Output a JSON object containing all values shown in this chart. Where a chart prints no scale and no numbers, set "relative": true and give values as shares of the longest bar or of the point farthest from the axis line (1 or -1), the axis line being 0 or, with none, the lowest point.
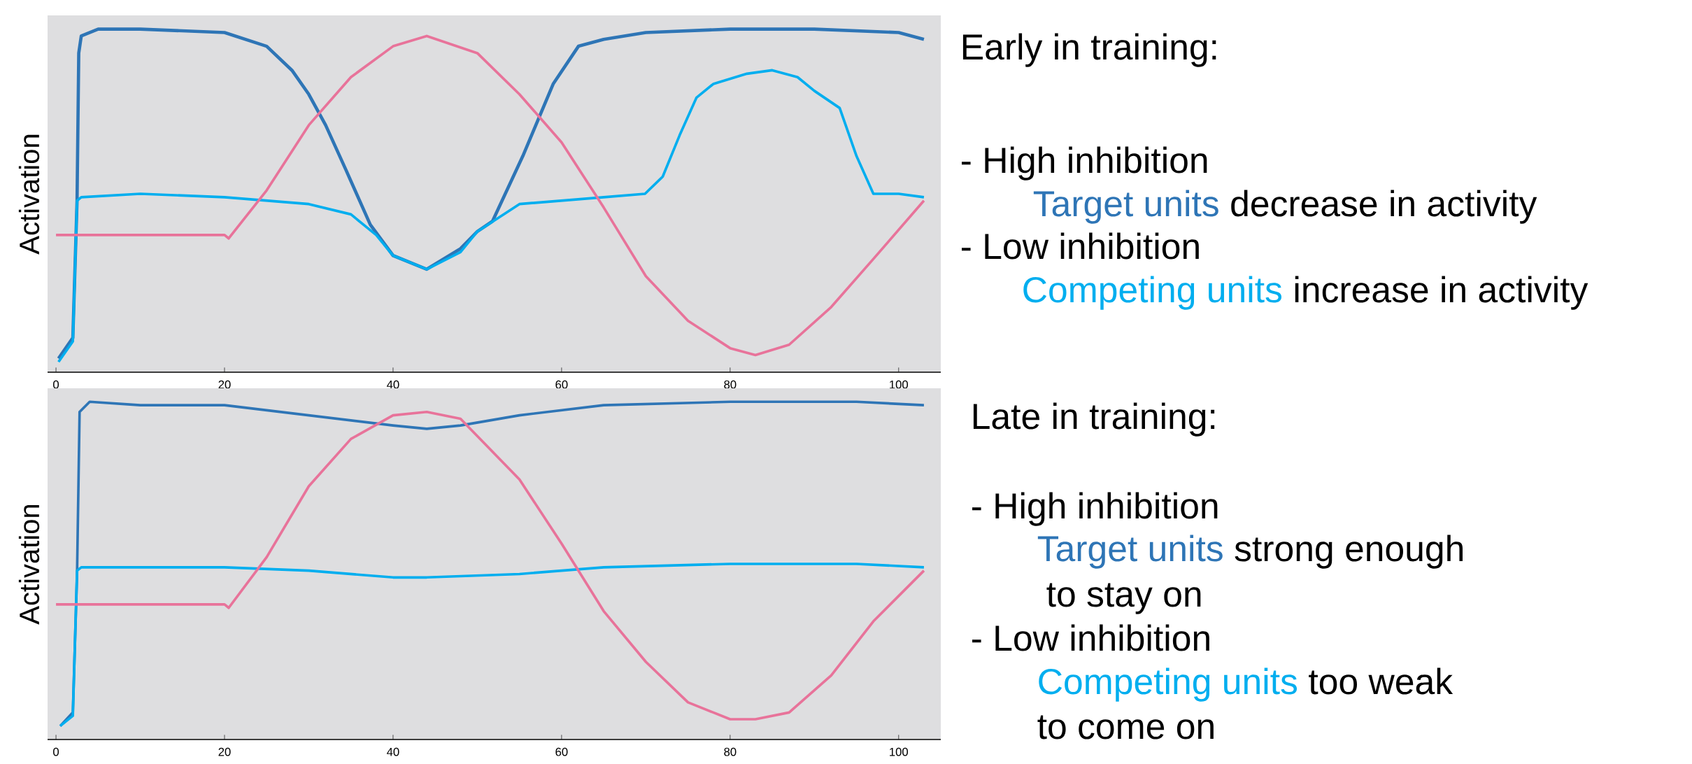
{
  "chart_data": [
    {
      "type": "line",
      "relative": true,
      "ylabel": "Activation",
      "xlim": [
        -1,
        105
      ],
      "xticks": [
        0,
        20,
        40,
        60,
        80,
        100
      ],
      "series": [
        {
          "color": "#2e75b6",
          "x": [
            0.3,
            2,
            2.5,
            2.7,
            3,
            5,
            10,
            20,
            25,
            28,
            30,
            32,
            34.4,
            37.3,
            40,
            44,
            48,
            50,
            51.8,
            55.4,
            59,
            62,
            65,
            70,
            80,
            90,
            100,
            103
          ],
          "values": [
            0.04,
            0.1,
            0.5,
            0.93,
            0.98,
            1.0,
            1.0,
            0.99,
            0.95,
            0.88,
            0.81,
            0.72,
            0.59,
            0.43,
            0.34,
            0.3,
            0.36,
            0.41,
            0.44,
            0.63,
            0.84,
            0.95,
            0.97,
            0.99,
            1.0,
            1.0,
            0.99,
            0.97
          ]
        },
        {
          "color": "#00aeef",
          "x": [
            0.3,
            2,
            2.5,
            3,
            10,
            20,
            25,
            30,
            35,
            38,
            40,
            44,
            48,
            50,
            55,
            60,
            65,
            69.9,
            72,
            74,
            76,
            78,
            82,
            85,
            88,
            90,
            93,
            95,
            97,
            100,
            103
          ],
          "values": [
            0.03,
            0.09,
            0.5,
            0.51,
            0.52,
            0.51,
            0.5,
            0.49,
            0.46,
            0.4,
            0.34,
            0.3,
            0.35,
            0.41,
            0.49,
            0.5,
            0.51,
            0.52,
            0.57,
            0.69,
            0.8,
            0.84,
            0.87,
            0.88,
            0.86,
            0.82,
            0.77,
            0.63,
            0.52,
            0.52,
            0.51
          ]
        },
        {
          "color": "#e8739a",
          "x": [
            0,
            20,
            20.5,
            25,
            30,
            35,
            40,
            44,
            50,
            55,
            60,
            65,
            70,
            75,
            80,
            83,
            87,
            92,
            97,
            103
          ],
          "values": [
            0.4,
            0.4,
            0.39,
            0.53,
            0.72,
            0.86,
            0.95,
            0.98,
            0.93,
            0.81,
            0.67,
            0.48,
            0.28,
            0.15,
            0.07,
            0.05,
            0.08,
            0.19,
            0.33,
            0.5
          ]
        }
      ],
      "annotations": [
        "Early in training:",
        "- High inhibition",
        "Target units",
        "decrease in activity",
        "- Low inhibition",
        "Competing units",
        "increase in activity"
      ]
    },
    {
      "type": "line",
      "relative": true,
      "ylabel": "Activation",
      "xlim": [
        -1,
        105
      ],
      "xticks": [
        0,
        20,
        40,
        60,
        80,
        100
      ],
      "series": [
        {
          "color": "#2e75b6",
          "x": [
            0.5,
            2,
            2.5,
            2.8,
            4,
            10,
            20,
            30,
            40,
            44,
            48,
            55,
            65,
            80,
            95,
            103
          ],
          "values": [
            0.04,
            0.08,
            0.49,
            0.97,
            1.0,
            0.99,
            0.99,
            0.96,
            0.93,
            0.92,
            0.93,
            0.96,
            0.99,
            1.0,
            1.0,
            0.99
          ]
        },
        {
          "color": "#00aeef",
          "x": [
            0.5,
            2,
            2.5,
            3,
            6,
            20,
            30,
            40,
            44,
            55,
            65,
            80,
            95,
            103
          ],
          "values": [
            0.04,
            0.07,
            0.5,
            0.51,
            0.51,
            0.51,
            0.5,
            0.48,
            0.48,
            0.49,
            0.51,
            0.52,
            0.52,
            0.51
          ]
        },
        {
          "color": "#e8739a",
          "x": [
            0,
            20,
            20.5,
            25,
            30,
            35,
            40,
            44,
            48,
            55,
            60,
            65,
            70,
            75,
            80,
            83,
            87,
            92,
            97,
            103
          ],
          "values": [
            0.4,
            0.4,
            0.39,
            0.54,
            0.75,
            0.89,
            0.96,
            0.97,
            0.95,
            0.77,
            0.58,
            0.38,
            0.23,
            0.11,
            0.06,
            0.06,
            0.08,
            0.19,
            0.35,
            0.5
          ]
        }
      ],
      "annotations": [
        "Late in training:",
        "- High inhibition",
        "Target units",
        "strong enough",
        "to stay on",
        "- Low inhibition",
        "Competing units",
        "too weak",
        "to come on"
      ]
    }
  ]
}
